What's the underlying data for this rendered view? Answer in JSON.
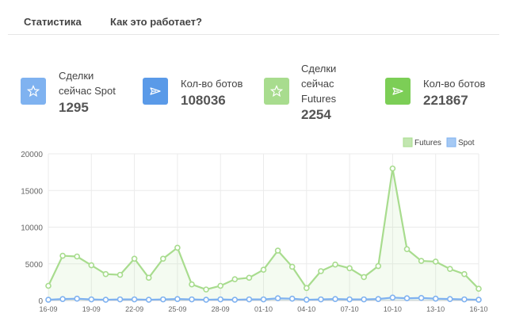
{
  "tabs": [
    {
      "label": "Статистика"
    },
    {
      "label": "Как это работает?"
    }
  ],
  "stats": [
    {
      "label_lines": [
        "Сделки",
        "сейчас Spot"
      ],
      "value": "1295",
      "icon": "star-icon",
      "color": "#7fb2f0"
    },
    {
      "label_lines": [
        "Кол-во ботов"
      ],
      "value": "108036",
      "icon": "rocket-icon",
      "color": "#5a9ae8"
    },
    {
      "label_lines": [
        "Сделки",
        "сейчас",
        "Futures"
      ],
      "value": "2254",
      "icon": "star-icon",
      "color": "#a8dc8e"
    },
    {
      "label_lines": [
        "Кол-во ботов"
      ],
      "value": "221867",
      "icon": "rocket-icon",
      "color": "#7cce56"
    }
  ],
  "chart_data": {
    "type": "line",
    "categories": [
      "16-09",
      "17-09",
      "18-09",
      "19-09",
      "20-09",
      "21-09",
      "22-09",
      "23-09",
      "24-09",
      "25-09",
      "26-09",
      "27-09",
      "28-09",
      "29-09",
      "30-09",
      "01-10",
      "02-10",
      "03-10",
      "04-10",
      "05-10",
      "06-10",
      "07-10",
      "08-10",
      "09-10",
      "10-10",
      "11-10",
      "12-10",
      "13-10",
      "14-10",
      "15-10",
      "16-10"
    ],
    "tick_labels": [
      "16-09",
      "19-09",
      "22-09",
      "25-09",
      "28-09",
      "01-10",
      "04-10",
      "07-10",
      "10-10",
      "13-10",
      "16-10"
    ],
    "series": [
      {
        "name": "Futures",
        "color": "#a8dc8e",
        "values": [
          2000,
          6100,
          6000,
          4800,
          3600,
          3500,
          5700,
          3100,
          5700,
          7200,
          2200,
          1500,
          2000,
          2900,
          3100,
          4200,
          6800,
          4600,
          1700,
          4000,
          4900,
          4400,
          3200,
          4700,
          18000,
          7000,
          5400,
          5300,
          4300,
          3600,
          1600
        ]
      },
      {
        "name": "Spot",
        "color": "#7fb2f0",
        "values": [
          100,
          200,
          250,
          150,
          100,
          150,
          150,
          100,
          150,
          200,
          150,
          100,
          150,
          100,
          150,
          150,
          300,
          250,
          100,
          150,
          200,
          150,
          150,
          200,
          400,
          300,
          350,
          250,
          200,
          150,
          100
        ]
      }
    ],
    "y_ticks": [
      "0",
      "5000",
      "10000",
      "15000",
      "20000"
    ],
    "ylim": [
      0,
      20000
    ],
    "legend_position": "top-right",
    "grid": true
  }
}
